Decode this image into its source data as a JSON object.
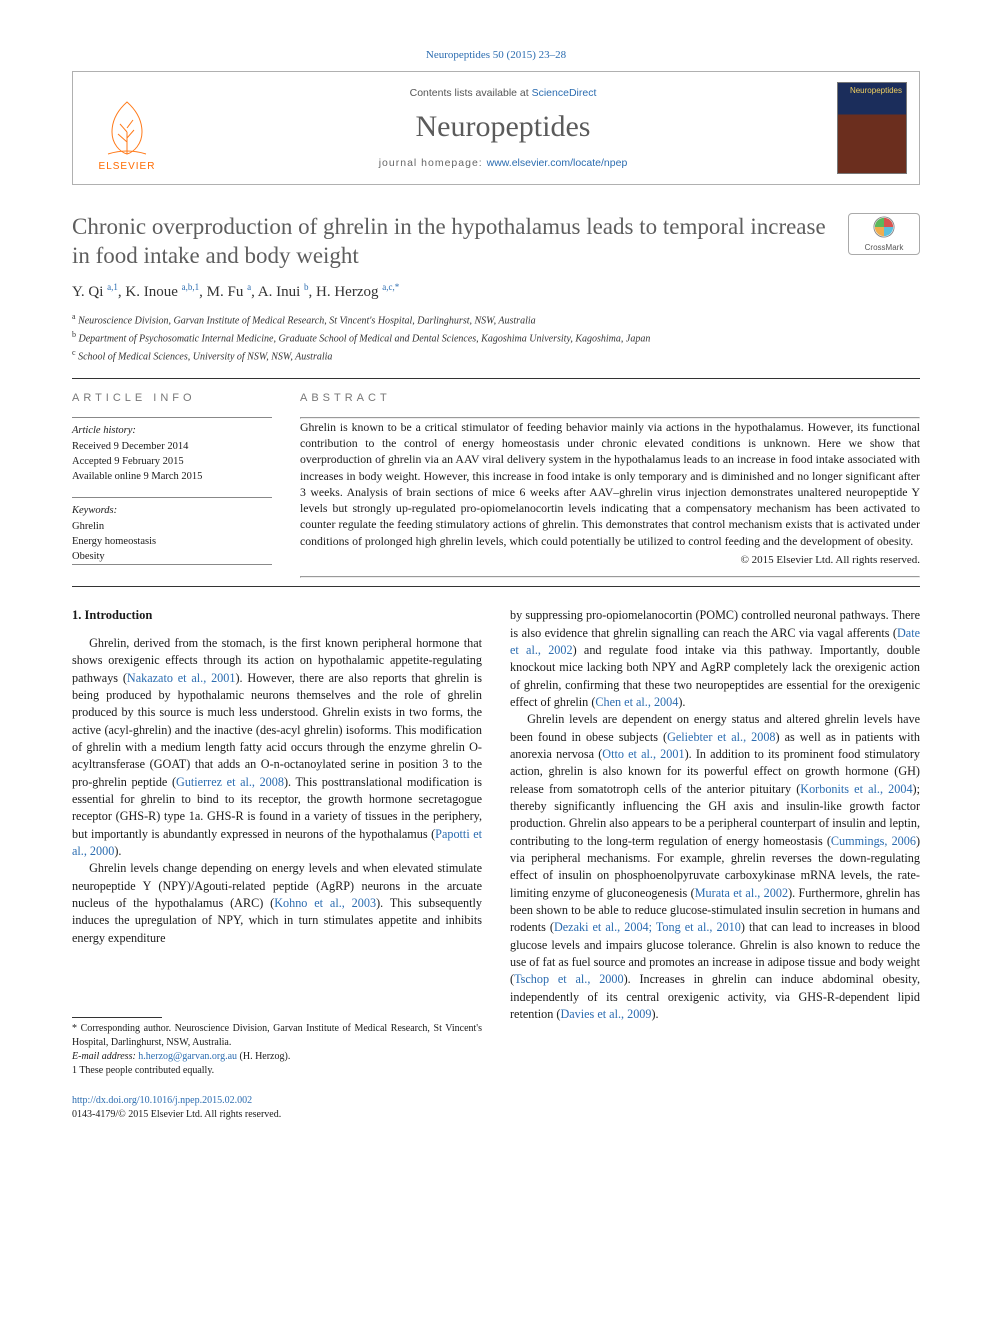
{
  "colors": {
    "link": "#2b6cb0",
    "title_gray": "#5e5e5e",
    "orange": "#ff6b00",
    "text": "#1a1a1a",
    "muted": "#666666"
  },
  "bibline": {
    "journal": "Neuropeptides",
    "volpages": " 50 (2015) 23–28"
  },
  "header": {
    "publisher": "ELSEVIER",
    "contents_prefix": "Contents lists available at ",
    "contents_link": "ScienceDirect",
    "journal": "Neuropeptides",
    "homepage_prefix": "journal homepage: ",
    "homepage_link": "www.elsevier.com/locate/npep",
    "cover_label": "Neuropeptides"
  },
  "title": "Chronic overproduction of ghrelin in the hypothalamus leads to temporal increase in food intake and body weight",
  "crossmark": "CrossMark",
  "authors_html": "Y. Qi <sup>a,1</sup>, K. Inoue <sup>a,b,1</sup>, M. Fu <sup>a</sup>, A. Inui <sup>b</sup>, H. Herzog <sup>a,c,*</sup>",
  "affiliations": [
    "a Neuroscience Division, Garvan Institute of Medical Research, St Vincent's Hospital, Darlinghurst, NSW, Australia",
    "b Department of Psychosomatic Internal Medicine, Graduate School of Medical and Dental Sciences, Kagoshima University, Kagoshima, Japan",
    "c School of Medical Sciences, University of NSW, NSW, Australia"
  ],
  "info": {
    "label": "ARTICLE INFO",
    "history_head": "Article history:",
    "history": [
      "Received 9 December 2014",
      "Accepted 9 February 2015",
      "Available online 9 March 2015"
    ],
    "keywords_head": "Keywords:",
    "keywords": [
      "Ghrelin",
      "Energy homeostasis",
      "Obesity"
    ]
  },
  "abstract": {
    "label": "ABSTRACT",
    "text": "Ghrelin is known to be a critical stimulator of feeding behavior mainly via actions in the hypothalamus. However, its functional contribution to the control of energy homeostasis under chronic elevated conditions is unknown. Here we show that overproduction of ghrelin via an AAV viral delivery system in the hypothalamus leads to an increase in food intake associated with increases in body weight. However, this increase in food intake is only temporary and is diminished and no longer significant after 3 weeks. Analysis of brain sections of mice 6 weeks after AAV–ghrelin virus injection demonstrates unaltered neuropeptide Y levels but strongly up-regulated pro-opiomelanocortin levels indicating that a compensatory mechanism has been activated to counter regulate the feeding stimulatory actions of ghrelin. This demonstrates that control mechanism exists that is activated under conditions of prolonged high ghrelin levels, which could potentially be utilized to control feeding and the development of obesity.",
    "copyright": "© 2015 Elsevier Ltd. All rights reserved."
  },
  "section1": {
    "heading": "1. Introduction",
    "p1a": "Ghrelin, derived from the stomach, is the first known peripheral hormone that shows orexigenic effects through its action on hypothalamic appetite-regulating pathways (",
    "c1": "Nakazato et al., 2001",
    "p1b": "). However, there are also reports that ghrelin is being produced by hypothalamic neurons themselves and the role of ghrelin produced by this source is much less understood. Ghrelin exists in two forms, the active (acyl-ghrelin) and the inactive (des-acyl ghrelin) isoforms. This modification of ghrelin with a medium length fatty acid occurs through the enzyme ghrelin O-acyltransferase (GOAT) that adds an O-n-octanoylated serine in position 3 to the pro-ghrelin peptide (",
    "c2": "Gutierrez et al., 2008",
    "p1c": "). This posttranslational modification is essential for ghrelin to bind to its receptor, the growth hormone secretagogue receptor (GHS-R) type 1a. GHS-R is found in a variety of tissues in the periphery, but importantly is abundantly expressed in neurons of the hypothalamus (",
    "c3": "Papotti et al., 2000",
    "p1d": ").",
    "p2a": "Ghrelin levels change depending on energy levels and when elevated stimulate neuropeptide Y (NPY)/Agouti-related peptide (AgRP) neurons in the arcuate nucleus of the hypothalamus (ARC) (",
    "c4": "Kohno et al., 2003",
    "p2b": "). This subsequently induces the upregulation of NPY, which in turn stimulates appetite and inhibits energy expenditure"
  },
  "col2": {
    "p1a": "by suppressing pro-opiomelanocortin (POMC) controlled neuronal pathways. There is also evidence that ghrelin signalling can reach the ARC via vagal afferents (",
    "c1": "Date et al., 2002",
    "p1b": ") and regulate food intake via this pathway. Importantly, double knockout mice lacking both NPY and AgRP completely lack the orexigenic action of ghrelin, confirming that these two neuropeptides are essential for the orexigenic effect of ghrelin (",
    "c2": "Chen et al., 2004",
    "p1c": ").",
    "p2a": "Ghrelin levels are dependent on energy status and altered ghrelin levels have been found in obese subjects (",
    "c3": "Geliebter et al., 2008",
    "p2b": ") as well as in patients with anorexia nervosa (",
    "c4": "Otto et al., 2001",
    "p2c": "). In addition to its prominent food stimulatory action, ghrelin is also known for its powerful effect on growth hormone (GH) release from somatotroph cells of the anterior pituitary (",
    "c5": "Korbonits et al., 2004",
    "p2d": "); thereby significantly influencing the GH axis and insulin-like growth factor production. Ghrelin also appears to be a peripheral counterpart of insulin and leptin, contributing to the long-term regulation of energy homeostasis (",
    "c6": "Cummings, 2006",
    "p2e": ") via peripheral mechanisms. For example, ghrelin reverses the down-regulating effect of insulin on phosphoenolpyruvate carboxykinase mRNA levels, the rate-limiting enzyme of gluconeogenesis (",
    "c7": "Murata et al., 2002",
    "p2f": "). Furthermore, ghrelin has been shown to be able to reduce glucose-stimulated insulin secretion in humans and rodents (",
    "c8": "Dezaki et al., 2004; Tong et al., 2010",
    "p2g": ") that can lead to increases in blood glucose levels and impairs glucose tolerance. Ghrelin is also known to reduce the use of fat as fuel source and promotes an increase in adipose tissue and body weight (",
    "c9": "Tschop et al., 2000",
    "p2h": "). Increases in ghrelin can induce abdominal obesity, independently of its central orexigenic activity, via GHS-R-dependent lipid retention (",
    "c10": "Davies et al., 2009",
    "p2i": ")."
  },
  "footnotes": {
    "corr": "* Corresponding author. Neuroscience Division, Garvan Institute of Medical Research, St Vincent's Hospital, Darlinghurst, NSW, Australia.",
    "email_label": "E-mail address: ",
    "email": "h.herzog@garvan.org.au",
    "email_suffix": " (H. Herzog).",
    "equal": "1 These people contributed equally."
  },
  "doi": {
    "url": "http://dx.doi.org/10.1016/j.npep.2015.02.002",
    "issn_line": "0143-4179/© 2015 Elsevier Ltd. All rights reserved."
  }
}
